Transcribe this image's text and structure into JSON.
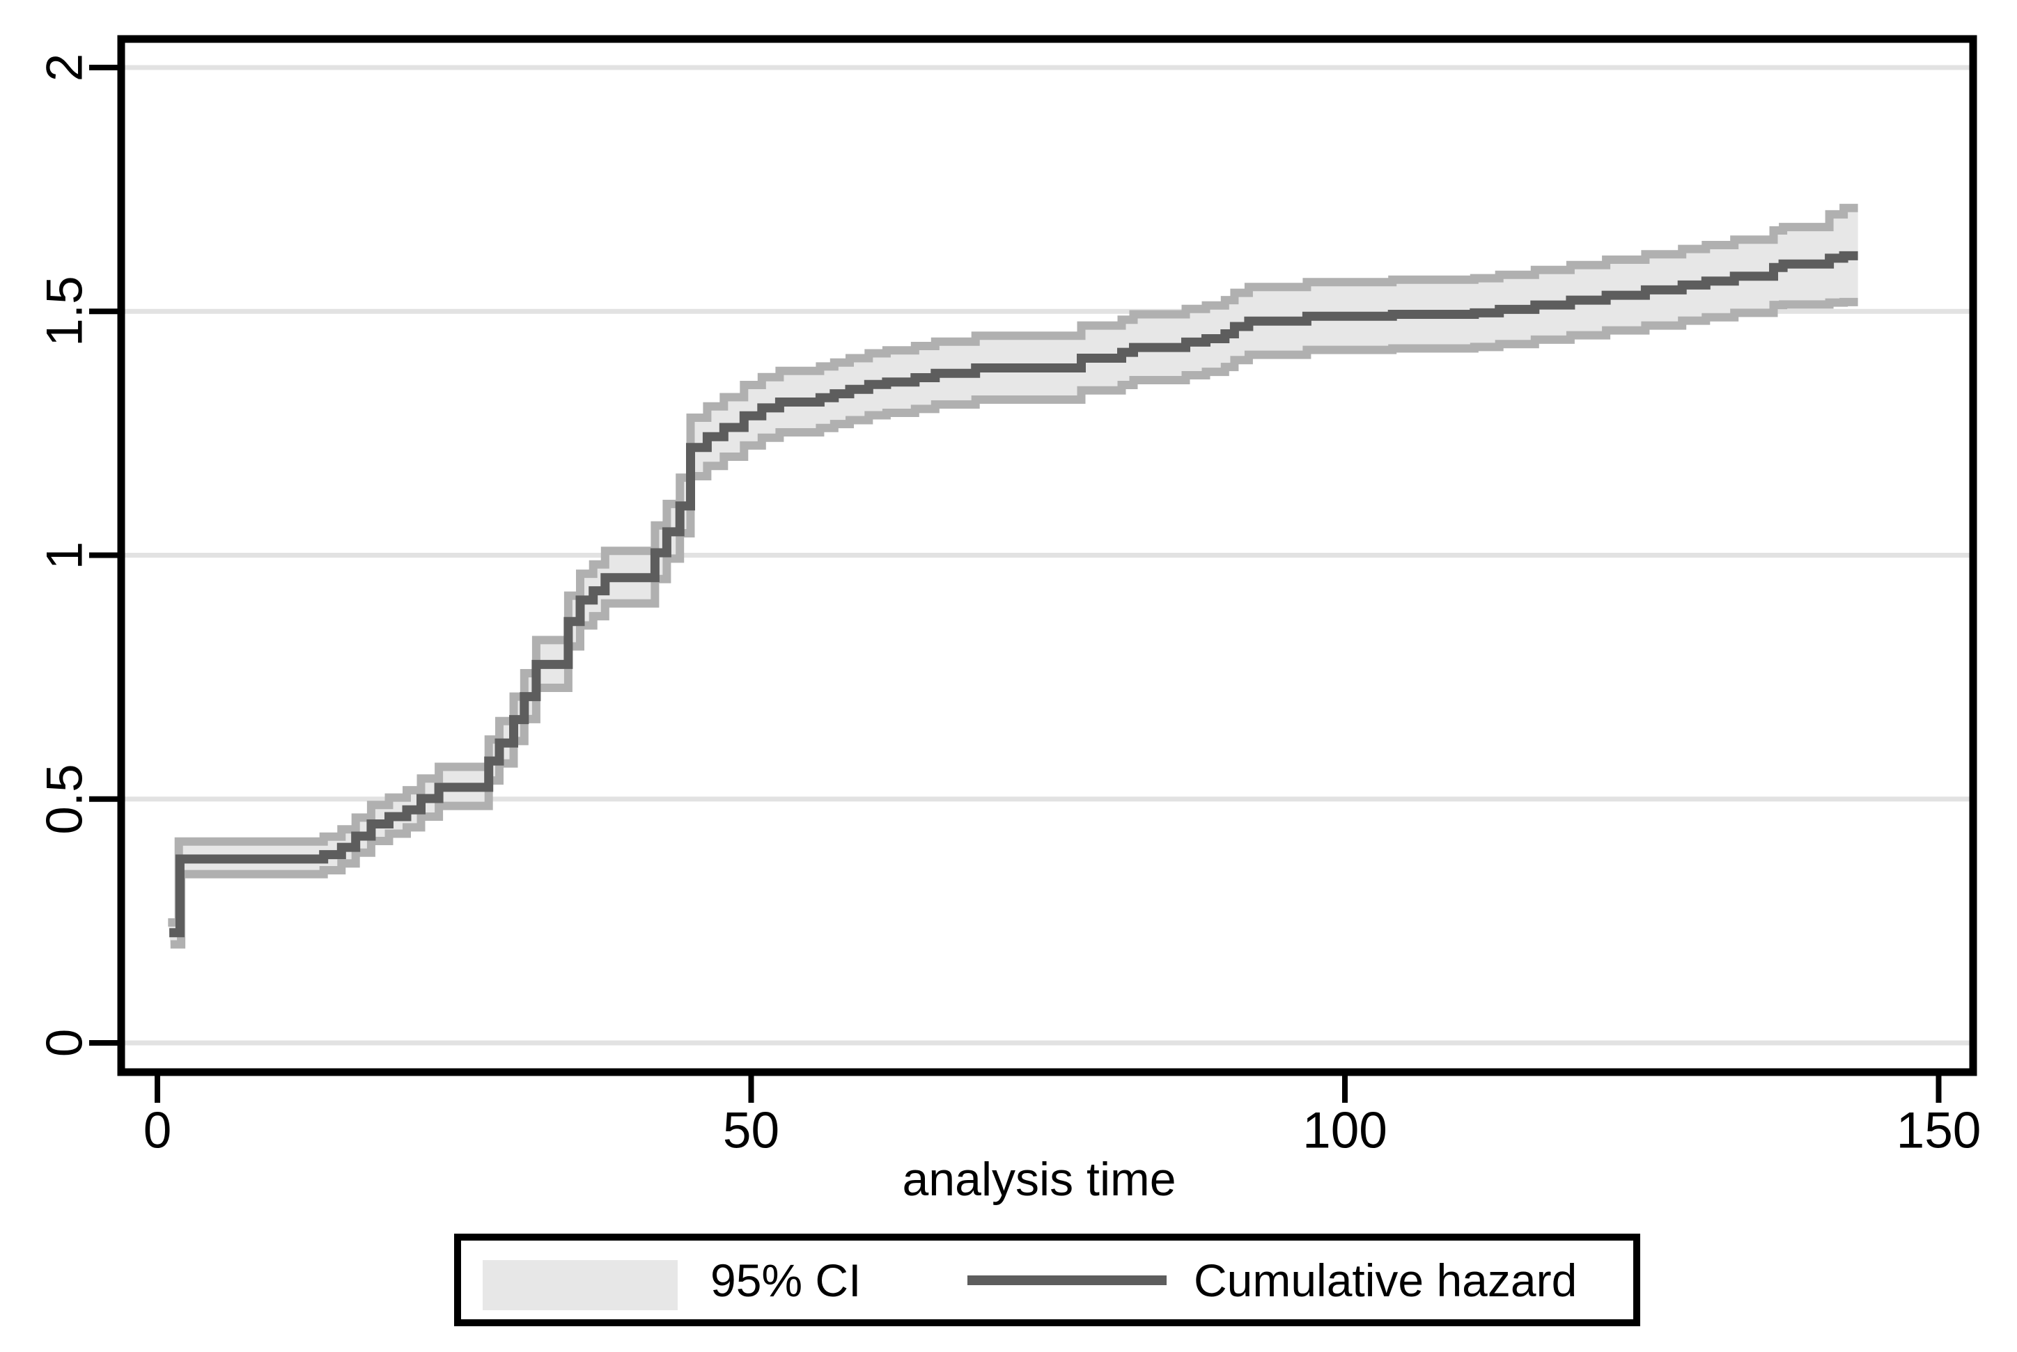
{
  "chart_data": {
    "type": "line",
    "subtype": "nelson-aalen-cumulative-hazard-step-plot",
    "title": "",
    "xlabel": "analysis time",
    "ylabel": "",
    "xlim": [
      -3,
      153
    ],
    "ylim": [
      -0.06,
      2.06
    ],
    "grid": true,
    "x_ticks": [
      0,
      50,
      100,
      150
    ],
    "x_tick_labels": [
      "0",
      "50",
      "100",
      "150"
    ],
    "y_ticks": [
      0,
      0.5,
      1,
      1.5,
      2
    ],
    "y_tick_labels": [
      "0",
      "0.5",
      "1",
      "1.5",
      "2"
    ],
    "x_end": 143.2,
    "legend": {
      "position": "bottom-center",
      "items": [
        {
          "swatch": "band",
          "label": "95% CI"
        },
        {
          "swatch": "line",
          "label": "Cumulative hazard"
        }
      ]
    },
    "style": {
      "band_fill": "#e7e7e7",
      "band_edge": "#b0b0b0",
      "hazard_color": "#5d5d5d",
      "grid_color": "#e2e2e2",
      "axis_color": "#000000",
      "background": "#ffffff"
    },
    "series": [
      {
        "name": "Cumulative hazard",
        "type": "step",
        "points": [
          [
            1.0,
            0.226
          ],
          [
            1.9,
            0.377
          ],
          [
            14,
            0.386
          ],
          [
            15.5,
            0.401
          ],
          [
            16.7,
            0.424
          ],
          [
            18,
            0.449
          ],
          [
            19.5,
            0.464
          ],
          [
            21,
            0.478
          ],
          [
            22.2,
            0.501
          ],
          [
            23.7,
            0.524
          ],
          [
            27.9,
            0.578
          ],
          [
            28.8,
            0.615
          ],
          [
            30,
            0.663
          ],
          [
            30.9,
            0.71
          ],
          [
            31.9,
            0.776
          ],
          [
            34.6,
            0.864
          ],
          [
            35.6,
            0.908
          ],
          [
            36.7,
            0.927
          ],
          [
            37.7,
            0.954
          ],
          [
            41.9,
            1.005
          ],
          [
            42.9,
            1.048
          ],
          [
            44,
            1.101
          ],
          [
            44.9,
            1.221
          ],
          [
            46.3,
            1.243
          ],
          [
            47.7,
            1.262
          ],
          [
            49.4,
            1.286
          ],
          [
            50.9,
            1.302
          ],
          [
            52.4,
            1.314
          ],
          [
            55.8,
            1.323
          ],
          [
            57,
            1.331
          ],
          [
            58.3,
            1.34
          ],
          [
            59.9,
            1.35
          ],
          [
            61.4,
            1.355
          ],
          [
            63.8,
            1.364
          ],
          [
            65.5,
            1.373
          ],
          [
            68.9,
            1.384
          ],
          [
            77.8,
            1.404
          ],
          [
            81.2,
            1.416
          ],
          [
            82.2,
            1.426
          ],
          [
            86.6,
            1.437
          ],
          [
            88.3,
            1.444
          ],
          [
            89.9,
            1.454
          ],
          [
            90.7,
            1.469
          ],
          [
            91.9,
            1.48
          ],
          [
            96.8,
            1.49
          ],
          [
            104,
            1.494
          ],
          [
            110.9,
            1.497
          ],
          [
            113,
            1.504
          ],
          [
            116,
            1.513
          ],
          [
            119,
            1.523
          ],
          [
            122,
            1.533
          ],
          [
            125.3,
            1.544
          ],
          [
            128.4,
            1.554
          ],
          [
            130.4,
            1.562
          ],
          [
            132.8,
            1.572
          ],
          [
            136.1,
            1.59
          ],
          [
            136.9,
            1.597
          ],
          [
            140.8,
            1.609
          ],
          [
            142,
            1.614
          ]
        ]
      },
      {
        "name": "95% CI upper",
        "type": "step",
        "points": [
          [
            0.9,
            0.247
          ],
          [
            1.8,
            0.413
          ],
          [
            14,
            0.423
          ],
          [
            15.5,
            0.438
          ],
          [
            16.7,
            0.462
          ],
          [
            18,
            0.488
          ],
          [
            19.5,
            0.503
          ],
          [
            21,
            0.518
          ],
          [
            22.2,
            0.542
          ],
          [
            23.7,
            0.566
          ],
          [
            27.9,
            0.622
          ],
          [
            28.8,
            0.66
          ],
          [
            30,
            0.71
          ],
          [
            30.9,
            0.758
          ],
          [
            31.9,
            0.826
          ],
          [
            34.6,
            0.917
          ],
          [
            35.6,
            0.962
          ],
          [
            36.7,
            0.981
          ],
          [
            37.7,
            1.009
          ],
          [
            41.9,
            1.061
          ],
          [
            42.9,
            1.105
          ],
          [
            44,
            1.159
          ],
          [
            44.9,
            1.282
          ],
          [
            46.3,
            1.305
          ],
          [
            47.7,
            1.324
          ],
          [
            49.4,
            1.349
          ],
          [
            50.9,
            1.365
          ],
          [
            52.4,
            1.378
          ],
          [
            55.8,
            1.387
          ],
          [
            57,
            1.395
          ],
          [
            58.3,
            1.404
          ],
          [
            59.9,
            1.414
          ],
          [
            61.4,
            1.42
          ],
          [
            63.8,
            1.429
          ],
          [
            65.5,
            1.438
          ],
          [
            68.9,
            1.45
          ],
          [
            77.8,
            1.471
          ],
          [
            81.2,
            1.483
          ],
          [
            82.2,
            1.494
          ],
          [
            86.6,
            1.505
          ],
          [
            88.3,
            1.512
          ],
          [
            89.9,
            1.523
          ],
          [
            90.7,
            1.538
          ],
          [
            91.9,
            1.55
          ],
          [
            96.8,
            1.56
          ],
          [
            104,
            1.565
          ],
          [
            110.9,
            1.568
          ],
          [
            113,
            1.575
          ],
          [
            116,
            1.585
          ],
          [
            119,
            1.595
          ],
          [
            122,
            1.606
          ],
          [
            125.3,
            1.617
          ],
          [
            128.4,
            1.628
          ],
          [
            130.4,
            1.636
          ],
          [
            132.8,
            1.647
          ],
          [
            136.1,
            1.666
          ],
          [
            136.9,
            1.673
          ],
          [
            140.8,
            1.699
          ],
          [
            142,
            1.712
          ]
        ]
      },
      {
        "name": "95% CI lower",
        "type": "step",
        "points": [
          [
            1.1,
            0.202
          ],
          [
            2.0,
            0.346
          ],
          [
            14,
            0.354
          ],
          [
            15.5,
            0.368
          ],
          [
            16.7,
            0.39
          ],
          [
            18,
            0.414
          ],
          [
            19.5,
            0.429
          ],
          [
            21,
            0.442
          ],
          [
            22.2,
            0.464
          ],
          [
            23.7,
            0.486
          ],
          [
            27.9,
            0.538
          ],
          [
            28.8,
            0.573
          ],
          [
            30,
            0.619
          ],
          [
            30.9,
            0.664
          ],
          [
            31.9,
            0.728
          ],
          [
            34.6,
            0.813
          ],
          [
            35.6,
            0.856
          ],
          [
            36.7,
            0.875
          ],
          [
            37.7,
            0.901
          ],
          [
            41.9,
            0.951
          ],
          [
            42.9,
            0.993
          ],
          [
            44,
            1.045
          ],
          [
            44.9,
            1.162
          ],
          [
            46.3,
            1.183
          ],
          [
            47.7,
            1.202
          ],
          [
            49.4,
            1.225
          ],
          [
            50.9,
            1.241
          ],
          [
            52.4,
            1.252
          ],
          [
            55.8,
            1.261
          ],
          [
            57,
            1.269
          ],
          [
            58.3,
            1.277
          ],
          [
            59.9,
            1.287
          ],
          [
            61.4,
            1.292
          ],
          [
            63.8,
            1.3
          ],
          [
            65.5,
            1.309
          ],
          [
            68.9,
            1.319
          ],
          [
            77.8,
            1.338
          ],
          [
            81.2,
            1.349
          ],
          [
            82.2,
            1.359
          ],
          [
            86.6,
            1.369
          ],
          [
            88.3,
            1.376
          ],
          [
            89.9,
            1.386
          ],
          [
            90.7,
            1.4
          ],
          [
            91.9,
            1.411
          ],
          [
            96.8,
            1.421
          ],
          [
            104,
            1.424
          ],
          [
            110.9,
            1.427
          ],
          [
            113,
            1.433
          ],
          [
            116,
            1.442
          ],
          [
            119,
            1.451
          ],
          [
            122,
            1.461
          ],
          [
            125.3,
            1.471
          ],
          [
            128.4,
            1.481
          ],
          [
            130.4,
            1.488
          ],
          [
            132.8,
            1.497
          ],
          [
            136.1,
            1.513
          ],
          [
            136.9,
            1.514
          ],
          [
            140.8,
            1.518
          ],
          [
            142,
            1.519
          ]
        ]
      }
    ]
  }
}
